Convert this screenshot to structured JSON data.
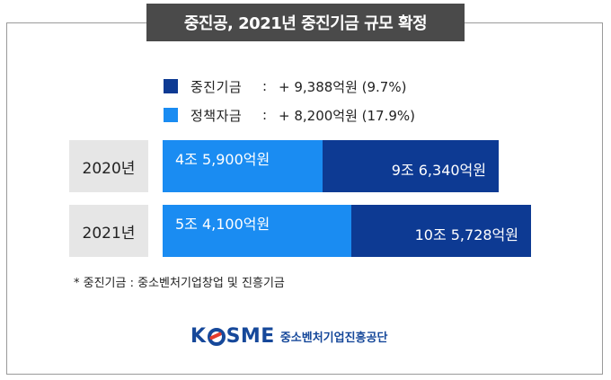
{
  "title": "중진공, 2021년 중진기금 규모 확정",
  "legend": [
    {
      "name": "중진기금",
      "colon": ":",
      "value": "+ 9,388억원 (9.7%)",
      "color": "#0d3a93"
    },
    {
      "name": "정책자금",
      "colon": ":",
      "value": "+ 8,200억원 (17.9%)",
      "color": "#1a8cf2"
    }
  ],
  "colors": {
    "fund_total": "#0d3a93",
    "policy_fund": "#1a8cf2",
    "year_box": "#e6e6e6",
    "title_bg": "#4a4a4a"
  },
  "chart_data": {
    "type": "bar",
    "orientation": "horizontal",
    "title": "중진공, 2021년 중진기금 규모 확정",
    "categories": [
      "2020년",
      "2021년"
    ],
    "series": [
      {
        "name": "정책자금",
        "values": [
          45900,
          54100
        ],
        "labels": [
          "4조 5,900억원",
          "5조 4,100억원"
        ]
      },
      {
        "name": "중진기금",
        "values": [
          96340,
          105728
        ],
        "labels": [
          "9조 6,340억원",
          "10조 5,728억원"
        ]
      }
    ],
    "unit": "억원",
    "max_value": 105728,
    "grid": false,
    "legend_position": "top"
  },
  "footnote": "*  중진기금 : 중소벤처기업창업 및 진흥기금",
  "logo": {
    "brand": "K SME",
    "brand_left": "K",
    "brand_right": "SME",
    "org_name": "중소벤처기업진흥공단"
  }
}
